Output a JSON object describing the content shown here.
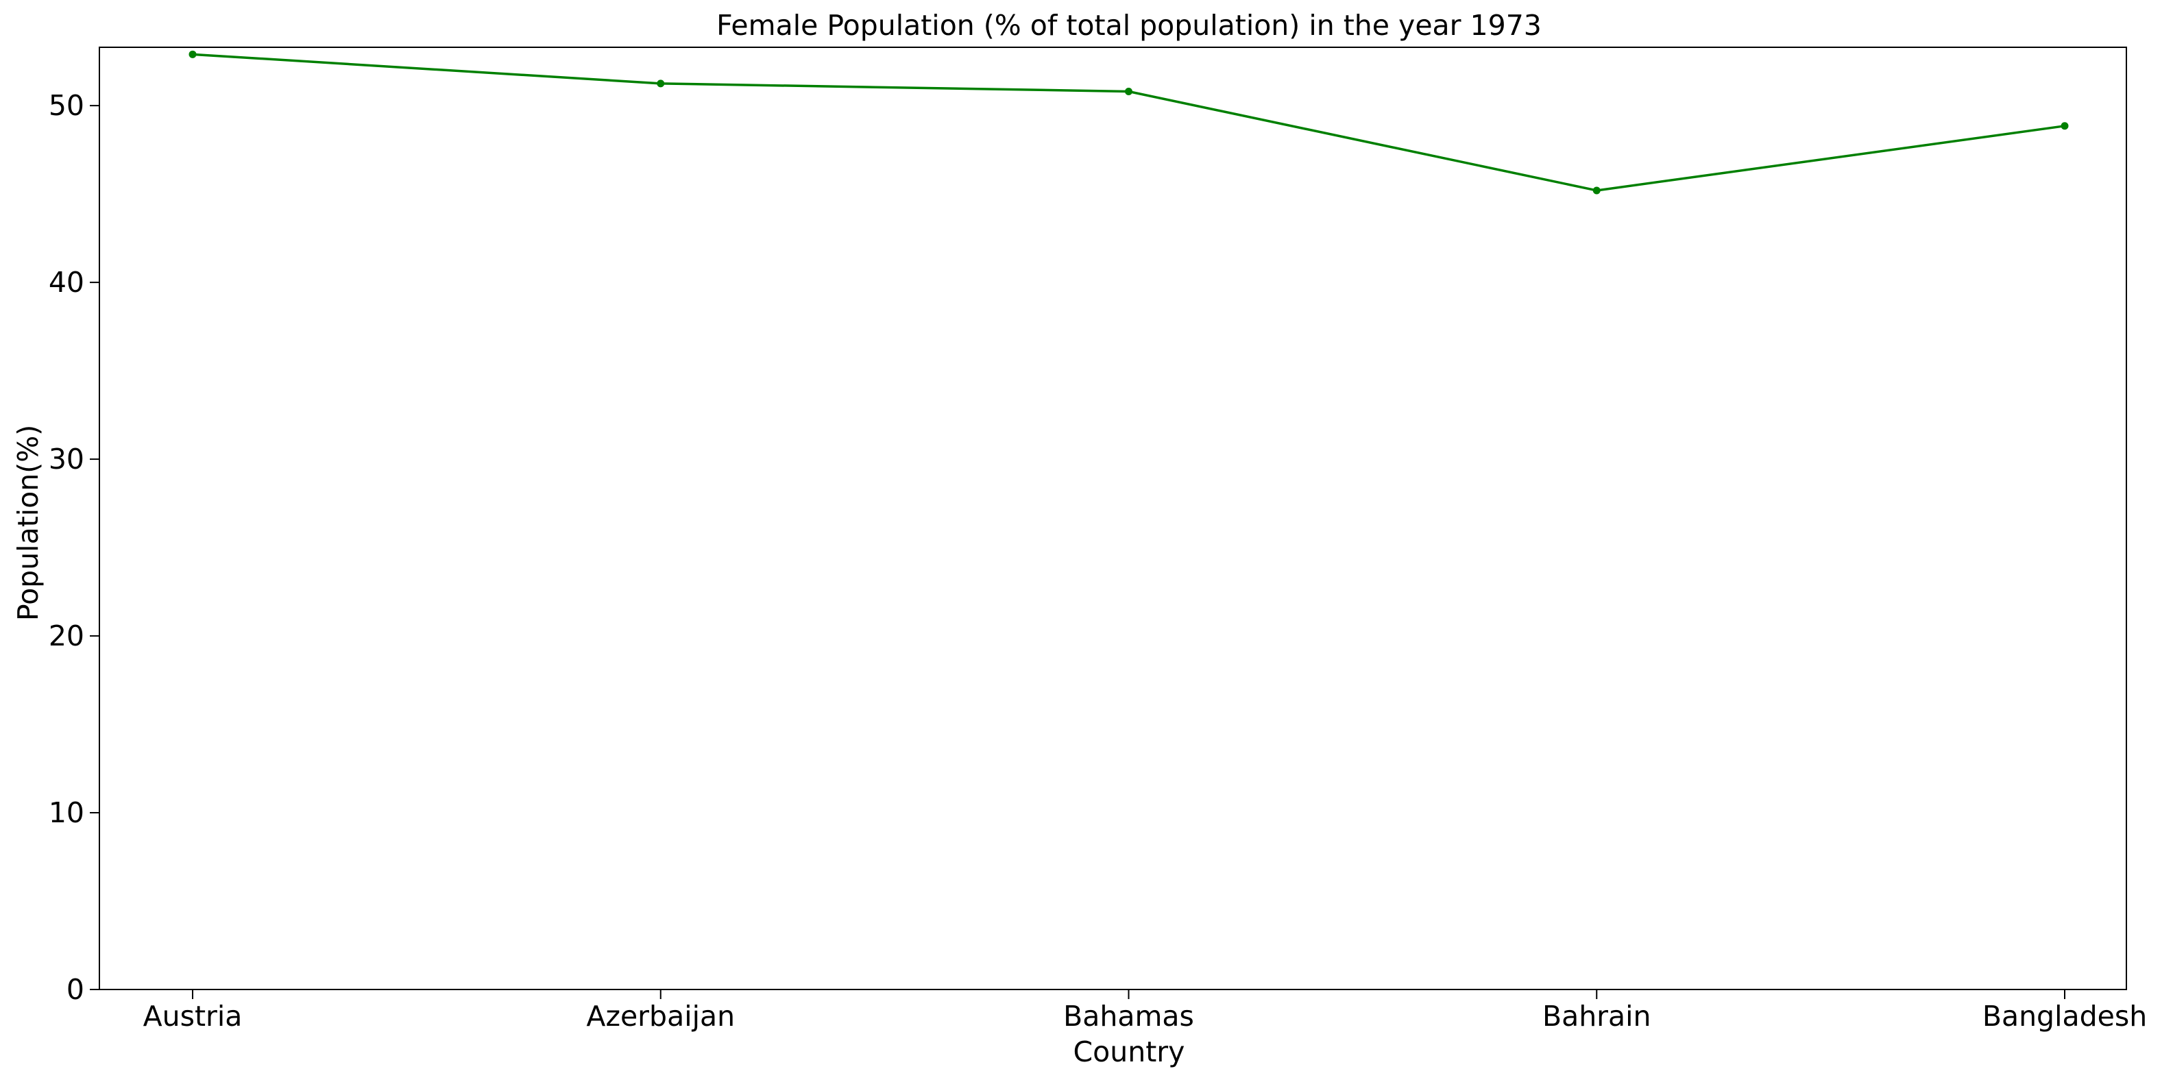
{
  "chart_data": {
    "type": "line",
    "title": "Female Population (% of total population) in the year 1973",
    "xlabel": "Country",
    "ylabel": "Population(%)",
    "categories": [
      "Austria",
      "Azerbaijan",
      "Bahamas",
      "Bahrain",
      "Bangladesh"
    ],
    "series": [
      {
        "values": [
          52.9,
          51.25,
          50.8,
          45.2,
          48.85
        ],
        "color": "#008000"
      }
    ],
    "ylim": [
      0,
      53.3
    ],
    "yticks": [
      0,
      10,
      20,
      30,
      40,
      50
    ],
    "grid": false,
    "legend": "none"
  }
}
